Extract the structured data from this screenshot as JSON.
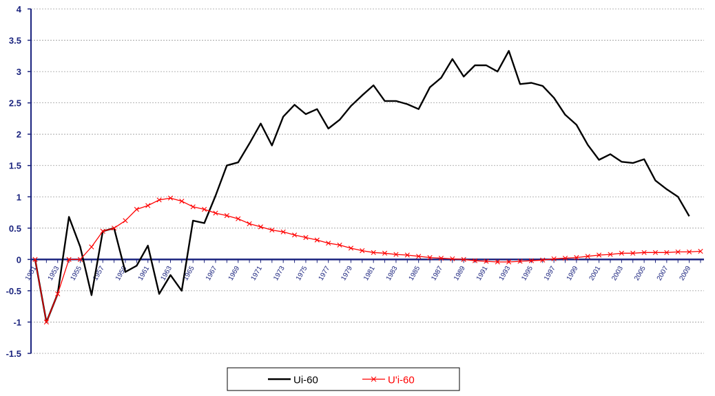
{
  "chart_data": {
    "type": "line",
    "ylim": [
      -1.5,
      4
    ],
    "yticks": [
      "4",
      "3.5",
      "3",
      "2.5",
      "2",
      "1.5",
      "1",
      "0.5",
      "0",
      "-0.5",
      "-1",
      "-1.5"
    ],
    "ytick_values": [
      4,
      3.5,
      3,
      2.5,
      2,
      1.5,
      1,
      0.5,
      0,
      -0.5,
      -1,
      -1.5
    ],
    "xlabels": [
      "1951",
      "1953",
      "1955",
      "1957",
      "1959",
      "1961",
      "1963",
      "1965",
      "1967",
      "1969",
      "1971",
      "1973",
      "1975",
      "1977",
      "1979",
      "1981",
      "1983",
      "1985",
      "1987",
      "1989",
      "1991",
      "1993",
      "1995",
      "1997",
      "1999",
      "2001",
      "2003",
      "2005",
      "2007",
      "2009"
    ],
    "x_start": 1951,
    "x_end": 2010,
    "grid": "horizontal-dotted",
    "legend_position": "bottom",
    "series": [
      {
        "name": "Ui-60",
        "color": "#000000",
        "marker": "none",
        "x": [
          1951,
          1952,
          1953,
          1954,
          1955,
          1956,
          1957,
          1958,
          1959,
          1960,
          1961,
          1962,
          1963,
          1964,
          1965,
          1966,
          1967,
          1968,
          1969,
          1970,
          1971,
          1972,
          1973,
          1974,
          1975,
          1976,
          1977,
          1978,
          1979,
          1980,
          1981,
          1982,
          1983,
          1984,
          1985,
          1986,
          1987,
          1988,
          1989,
          1990,
          1991,
          1992,
          1993,
          1994,
          1995,
          1996,
          1997,
          1998,
          1999,
          2000,
          2001,
          2002,
          2003,
          2004,
          2005,
          2006,
          2007,
          2008,
          2009,
          2010
        ],
        "values": [
          0,
          -1,
          -0.55,
          0.68,
          0.2,
          -0.57,
          0.45,
          0.5,
          -0.2,
          -0.1,
          0.22,
          -0.55,
          -0.25,
          -0.5,
          0.62,
          0.58,
          1.02,
          1.5,
          1.55,
          1.85,
          2.17,
          1.82,
          2.28,
          2.47,
          2.32,
          2.4,
          2.09,
          2.23,
          2.45,
          2.62,
          2.78,
          2.53,
          2.53,
          2.48,
          2.4,
          2.75,
          2.9,
          3.2,
          2.92,
          3.1,
          3.1,
          3.0,
          3.33,
          2.8,
          2.82,
          2.77,
          2.58,
          2.31,
          2.15,
          1.83,
          1.59,
          1.68,
          1.56,
          1.54,
          1.6,
          1.26,
          1.12,
          1.0,
          0.69,
          null
        ]
      },
      {
        "name": "U'i-60",
        "color": "#ff0000",
        "marker": "x",
        "x": [
          1951,
          1952,
          1953,
          1954,
          1955,
          1956,
          1957,
          1958,
          1959,
          1960,
          1961,
          1962,
          1963,
          1964,
          1965,
          1966,
          1967,
          1968,
          1969,
          1970,
          1971,
          1972,
          1973,
          1974,
          1975,
          1976,
          1977,
          1978,
          1979,
          1980,
          1981,
          1982,
          1983,
          1984,
          1985,
          1986,
          1987,
          1988,
          1989,
          1990,
          1991,
          1992,
          1993,
          1994,
          1995,
          1996,
          1997,
          1998,
          1999,
          2000,
          2001,
          2002,
          2003,
          2004,
          2005,
          2006,
          2007,
          2008,
          2009,
          2010
        ],
        "values": [
          0,
          -1,
          -0.55,
          0,
          0,
          0.2,
          0.45,
          0.5,
          0.62,
          0.8,
          0.86,
          0.95,
          0.98,
          0.93,
          0.84,
          0.8,
          0.74,
          0.7,
          0.65,
          0.57,
          0.52,
          0.47,
          0.44,
          0.39,
          0.35,
          0.31,
          0.26,
          0.23,
          0.18,
          0.14,
          0.11,
          0.1,
          0.08,
          0.07,
          0.05,
          0.03,
          0.02,
          0.01,
          0,
          -0.02,
          -0.03,
          -0.04,
          -0.04,
          -0.03,
          -0.02,
          -0.01,
          0.01,
          0.02,
          0.03,
          0.05,
          0.07,
          0.08,
          0.1,
          0.1,
          0.11,
          0.11,
          0.11,
          0.12,
          0.12,
          0.13
        ]
      }
    ]
  }
}
